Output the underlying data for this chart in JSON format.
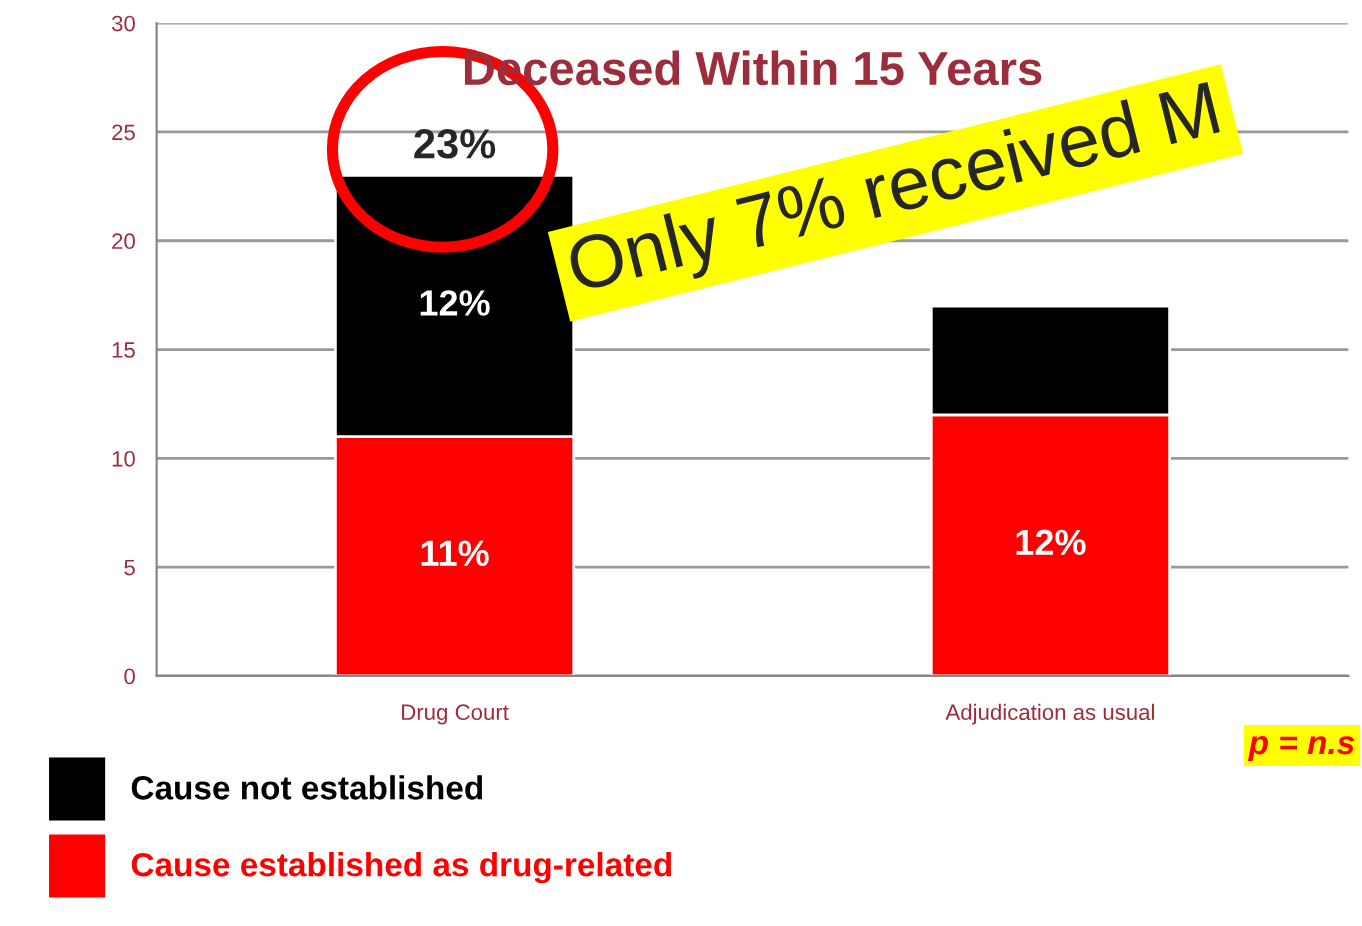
{
  "chart_data": {
    "type": "bar",
    "stacked": true,
    "title": "Deceased Within 15 Years",
    "categories": [
      "Drug Court",
      "Adjudication as usual"
    ],
    "series": [
      {
        "name": "Cause established as drug-related",
        "color": "#ff0000",
        "values": [
          11,
          12
        ],
        "value_labels": [
          "11%",
          "12%"
        ]
      },
      {
        "name": "Cause not established",
        "color": "#000000",
        "values": [
          12,
          5
        ],
        "value_labels": [
          "12%",
          null
        ]
      }
    ],
    "totals": [
      "23%",
      null
    ],
    "ylim": [
      0,
      30
    ],
    "yticks": [
      0,
      5,
      10,
      15,
      20,
      25,
      30
    ],
    "grid": "y",
    "legend": "bottom left",
    "annotations": [
      "Only 7% received M",
      "p = n.s"
    ]
  }
}
